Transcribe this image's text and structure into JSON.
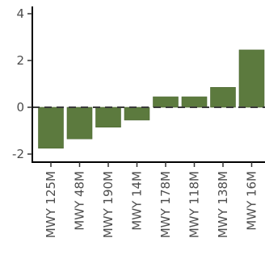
{
  "chart_data": {
    "type": "bar",
    "categories": [
      "MWY 125M",
      "MWY 48M",
      "MWY 190M",
      "MWY 14M",
      "MWY 178M",
      "MWY 118M",
      "MWY 138M",
      "MWY 16M"
    ],
    "values": [
      -1.75,
      -1.35,
      -0.85,
      -0.55,
      0.45,
      0.45,
      0.85,
      2.45
    ],
    "title": "",
    "xlabel": "",
    "ylabel": "",
    "ylim": [
      -2.3,
      4.3
    ],
    "y_ticks": [
      -2,
      0,
      2,
      4
    ],
    "y_tick_labels": [
      "-2",
      "0",
      "2",
      "4"
    ],
    "grid": false,
    "reference_line": {
      "y": 0,
      "style": "dashed"
    },
    "bar_color": "#5c7a3e",
    "bar_edge_color": "#4b6631",
    "axis_color": "#000000"
  }
}
